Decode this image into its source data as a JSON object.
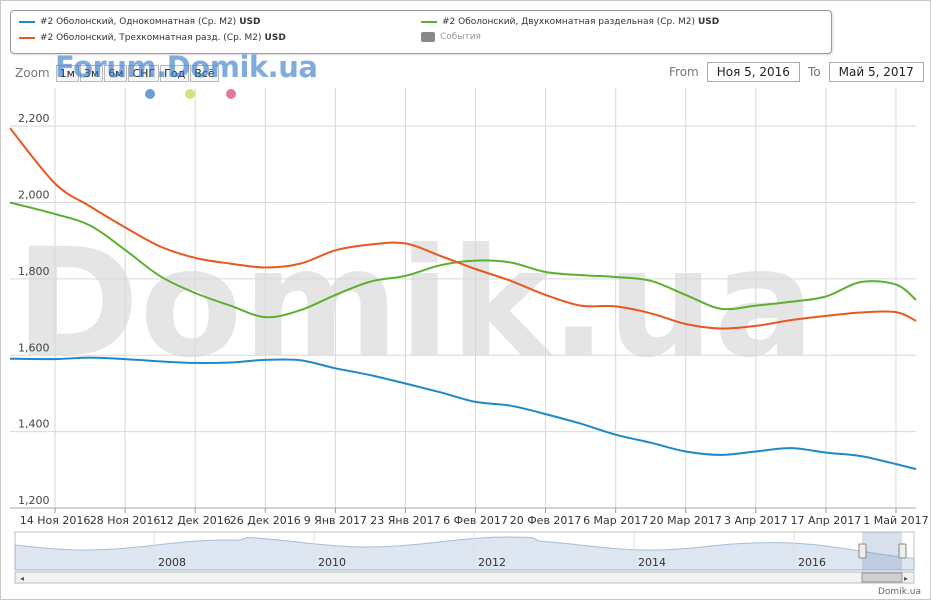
{
  "legend": {
    "items": [
      {
        "label": "#2 Оболонский, Однокомнатная (Ср. М2)",
        "unit": "USD",
        "color": "#1f88c8"
      },
      {
        "label": "#2 Оболонский, Двухкомнатная раздельная (Ср. М2)",
        "unit": "USD",
        "color": "#5cb030"
      },
      {
        "label": "#2 Оболонский, Трехкомнатная разд. (Ср. М2)",
        "unit": "USD",
        "color": "#e8581e"
      },
      {
        "label": "События",
        "unit": "",
        "color": "#888888"
      }
    ]
  },
  "zoom": {
    "label": "Zoom",
    "buttons": [
      "1м",
      "3м",
      "6м",
      "СНГ",
      "Год",
      "Всё"
    ]
  },
  "watermark_top": "Forum.Domik.ua",
  "watermark_center": "Domik.ua",
  "range": {
    "from_label": "From",
    "from_value": "Ноя 5, 2016",
    "to_label": "To",
    "to_value": "Май 5, 2017"
  },
  "event_colors": [
    "#6a9fd6",
    "#d8e07a",
    "#e07a98"
  ],
  "navigator": {
    "year_labels": [
      "2008",
      "2010",
      "2012",
      "2014",
      "2016"
    ]
  },
  "footer": "Domik.ua",
  "chart_data": {
    "type": "line",
    "x_ticks": [
      "14 Ноя 2016",
      "28 Ноя 2016",
      "12 Дек 2016",
      "26 Дек 2016",
      "9 Янв 2017",
      "23 Янв 2017",
      "6 Фев 2017",
      "20 Фев 2017",
      "6 Мар 2017",
      "20 Мар 2017",
      "3 Апр 2017",
      "17 Апр 2017",
      "1 Май 2017"
    ],
    "x_range": [
      "2016-11-05",
      "2017-05-05"
    ],
    "y_ticks": [
      "1,200",
      "1,400",
      "1,600",
      "1,800",
      "2,000",
      "2,200"
    ],
    "ylim": [
      1200,
      2300
    ],
    "grid": true,
    "series": [
      {
        "name": "#2 Оболонский, Однокомнатная (Ср. М2) USD",
        "color": "#1f88c8",
        "points": [
          [
            "2016-11-05",
            1591
          ],
          [
            "2016-11-14",
            1590
          ],
          [
            "2016-11-21",
            1594
          ],
          [
            "2016-11-28",
            1590
          ],
          [
            "2016-12-05",
            1584
          ],
          [
            "2016-12-12",
            1580
          ],
          [
            "2016-12-19",
            1581
          ],
          [
            "2016-12-26",
            1588
          ],
          [
            "2017-01-02",
            1587
          ],
          [
            "2017-01-09",
            1566
          ],
          [
            "2017-01-16",
            1548
          ],
          [
            "2017-01-23",
            1526
          ],
          [
            "2017-01-30",
            1503
          ],
          [
            "2017-02-06",
            1478
          ],
          [
            "2017-02-13",
            1468
          ],
          [
            "2017-02-20",
            1446
          ],
          [
            "2017-02-27",
            1421
          ],
          [
            "2017-03-06",
            1392
          ],
          [
            "2017-03-13",
            1371
          ],
          [
            "2017-03-20",
            1348
          ],
          [
            "2017-03-27",
            1339
          ],
          [
            "2017-04-03",
            1348
          ],
          [
            "2017-04-10",
            1357
          ],
          [
            "2017-04-17",
            1345
          ],
          [
            "2017-04-24",
            1336
          ],
          [
            "2017-05-01",
            1315
          ],
          [
            "2017-05-05",
            1302
          ]
        ]
      },
      {
        "name": "#2 Оболонский, Двухкомнатная раздельная (Ср. М2) USD",
        "color": "#5cb030",
        "points": [
          [
            "2016-11-05",
            2000
          ],
          [
            "2016-11-14",
            1970
          ],
          [
            "2016-11-21",
            1940
          ],
          [
            "2016-11-28",
            1876
          ],
          [
            "2016-12-05",
            1807
          ],
          [
            "2016-12-12",
            1763
          ],
          [
            "2016-12-19",
            1730
          ],
          [
            "2016-12-26",
            1700
          ],
          [
            "2017-01-02",
            1718
          ],
          [
            "2017-01-09",
            1758
          ],
          [
            "2017-01-16",
            1793
          ],
          [
            "2017-01-23",
            1808
          ],
          [
            "2017-01-30",
            1836
          ],
          [
            "2017-02-06",
            1848
          ],
          [
            "2017-02-13",
            1843
          ],
          [
            "2017-02-20",
            1818
          ],
          [
            "2017-02-27",
            1810
          ],
          [
            "2017-03-06",
            1805
          ],
          [
            "2017-03-13",
            1795
          ],
          [
            "2017-03-20",
            1758
          ],
          [
            "2017-03-27",
            1722
          ],
          [
            "2017-04-03",
            1730
          ],
          [
            "2017-04-10",
            1740
          ],
          [
            "2017-04-17",
            1754
          ],
          [
            "2017-04-24",
            1792
          ],
          [
            "2017-05-01",
            1785
          ],
          [
            "2017-05-05",
            1745
          ]
        ]
      },
      {
        "name": "#2 Оболонский, Трехкомнатная разд. (Ср. М2) USD",
        "color": "#e8581e",
        "points": [
          [
            "2016-11-05",
            2195
          ],
          [
            "2016-11-14",
            2050
          ],
          [
            "2016-11-21",
            1990
          ],
          [
            "2016-11-28",
            1935
          ],
          [
            "2016-12-05",
            1885
          ],
          [
            "2016-12-12",
            1855
          ],
          [
            "2016-12-19",
            1840
          ],
          [
            "2016-12-26",
            1830
          ],
          [
            "2017-01-02",
            1840
          ],
          [
            "2017-01-09",
            1875
          ],
          [
            "2017-01-16",
            1890
          ],
          [
            "2017-01-23",
            1893
          ],
          [
            "2017-01-30",
            1860
          ],
          [
            "2017-02-06",
            1826
          ],
          [
            "2017-02-13",
            1795
          ],
          [
            "2017-02-20",
            1758
          ],
          [
            "2017-02-27",
            1730
          ],
          [
            "2017-03-06",
            1728
          ],
          [
            "2017-03-13",
            1710
          ],
          [
            "2017-03-20",
            1682
          ],
          [
            "2017-03-27",
            1670
          ],
          [
            "2017-04-03",
            1677
          ],
          [
            "2017-04-10",
            1692
          ],
          [
            "2017-04-17",
            1703
          ],
          [
            "2017-04-24",
            1712
          ],
          [
            "2017-05-01",
            1713
          ],
          [
            "2017-05-05",
            1690
          ]
        ]
      }
    ]
  }
}
